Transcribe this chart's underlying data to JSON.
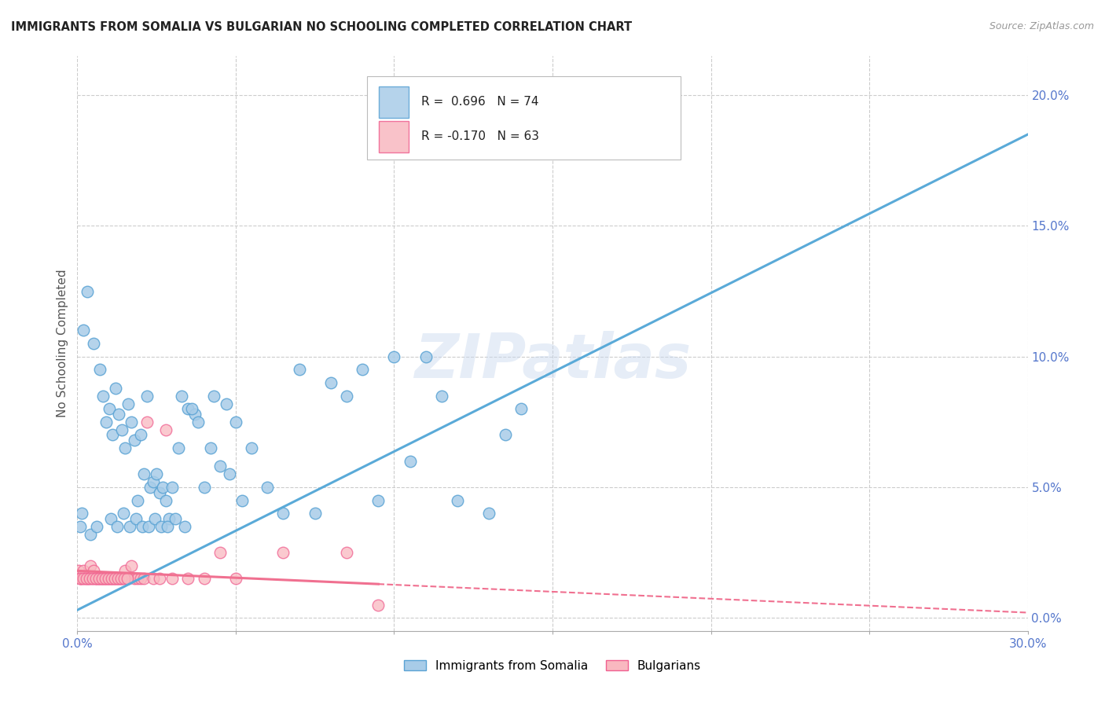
{
  "title": "IMMIGRANTS FROM SOMALIA VS BULGARIAN NO SCHOOLING COMPLETED CORRELATION CHART",
  "source": "Source: ZipAtlas.com",
  "ylabel": "No Schooling Completed",
  "xmin": 0.0,
  "xmax": 30.0,
  "ymin": -0.5,
  "ymax": 21.5,
  "blue_R": 0.696,
  "blue_N": 74,
  "pink_R": -0.17,
  "pink_N": 63,
  "blue_color": "#a8cce8",
  "pink_color": "#f9b8c0",
  "blue_edge_color": "#5aa3d4",
  "pink_edge_color": "#f06090",
  "blue_line_color": "#5aaad8",
  "pink_line_color": "#f07090",
  "grid_color": "#cccccc",
  "tick_color": "#5577cc",
  "legend_label_blue": "Immigrants from Somalia",
  "legend_label_pink": "Bulgarians",
  "watermark": "ZIPatlas",
  "blue_line_x0": 0.0,
  "blue_line_x1": 30.0,
  "blue_line_y0": 0.3,
  "blue_line_y1": 18.5,
  "pink_line_x0": 0.0,
  "pink_line_x1": 30.0,
  "pink_line_y0": 1.8,
  "pink_line_y1": 0.2,
  "pink_solid_xmax": 9.5,
  "blue_scatter_x": [
    0.2,
    0.3,
    0.5,
    0.7,
    0.8,
    0.9,
    1.0,
    1.1,
    1.2,
    1.3,
    1.4,
    1.5,
    1.6,
    1.7,
    1.8,
    1.9,
    2.0,
    2.1,
    2.2,
    2.3,
    2.4,
    2.5,
    2.6,
    2.7,
    2.8,
    2.9,
    3.0,
    3.2,
    3.3,
    3.5,
    3.7,
    3.8,
    4.0,
    4.2,
    4.5,
    4.8,
    5.0,
    5.2,
    5.5,
    6.0,
    6.5,
    7.0,
    7.5,
    8.0,
    8.5,
    9.0,
    9.5,
    10.0,
    10.5,
    11.0,
    11.5,
    12.0,
    13.0,
    13.5,
    14.0,
    0.1,
    0.15,
    0.4,
    0.6,
    1.05,
    1.25,
    1.45,
    1.65,
    1.85,
    2.05,
    2.25,
    2.45,
    2.65,
    2.85,
    3.1,
    3.4,
    3.6,
    4.3,
    4.7
  ],
  "blue_scatter_y": [
    11.0,
    12.5,
    10.5,
    9.5,
    8.5,
    7.5,
    8.0,
    7.0,
    8.8,
    7.8,
    7.2,
    6.5,
    8.2,
    7.5,
    6.8,
    4.5,
    7.0,
    5.5,
    8.5,
    5.0,
    5.2,
    5.5,
    4.8,
    5.0,
    4.5,
    3.8,
    5.0,
    6.5,
    8.5,
    8.0,
    7.8,
    7.5,
    5.0,
    6.5,
    5.8,
    5.5,
    7.5,
    4.5,
    6.5,
    5.0,
    4.0,
    9.5,
    4.0,
    9.0,
    8.5,
    9.5,
    4.5,
    10.0,
    6.0,
    10.0,
    8.5,
    4.5,
    4.0,
    7.0,
    8.0,
    3.5,
    4.0,
    3.2,
    3.5,
    3.8,
    3.5,
    4.0,
    3.5,
    3.8,
    3.5,
    3.5,
    3.8,
    3.5,
    3.5,
    3.8,
    3.5,
    8.0,
    8.5,
    8.2
  ],
  "pink_scatter_x": [
    0.05,
    0.1,
    0.15,
    0.2,
    0.25,
    0.3,
    0.35,
    0.4,
    0.45,
    0.5,
    0.55,
    0.6,
    0.65,
    0.7,
    0.75,
    0.8,
    0.85,
    0.9,
    0.95,
    1.0,
    1.05,
    1.1,
    1.15,
    1.2,
    1.25,
    1.3,
    1.35,
    1.4,
    1.5,
    1.6,
    1.7,
    1.8,
    1.9,
    2.0,
    2.1,
    2.2,
    2.4,
    2.6,
    2.8,
    3.0,
    3.5,
    4.0,
    4.5,
    5.0,
    6.5,
    8.5,
    9.5,
    0.08,
    0.18,
    0.28,
    0.38,
    0.48,
    0.58,
    0.68,
    0.78,
    0.88,
    0.98,
    1.08,
    1.18,
    1.28,
    1.38,
    1.48,
    1.58
  ],
  "pink_scatter_y": [
    1.8,
    1.5,
    1.5,
    1.8,
    1.5,
    1.5,
    1.5,
    2.0,
    1.5,
    1.8,
    1.5,
    1.5,
    1.5,
    1.5,
    1.5,
    1.5,
    1.5,
    1.5,
    1.5,
    1.5,
    1.5,
    1.5,
    1.5,
    1.5,
    1.5,
    1.5,
    1.5,
    1.5,
    1.8,
    1.5,
    2.0,
    1.5,
    1.5,
    1.5,
    1.5,
    7.5,
    1.5,
    1.5,
    7.2,
    1.5,
    1.5,
    1.5,
    2.5,
    1.5,
    2.5,
    2.5,
    0.5,
    1.5,
    1.5,
    1.5,
    1.5,
    1.5,
    1.5,
    1.5,
    1.5,
    1.5,
    1.5,
    1.5,
    1.5,
    1.5,
    1.5,
    1.5,
    1.5
  ]
}
